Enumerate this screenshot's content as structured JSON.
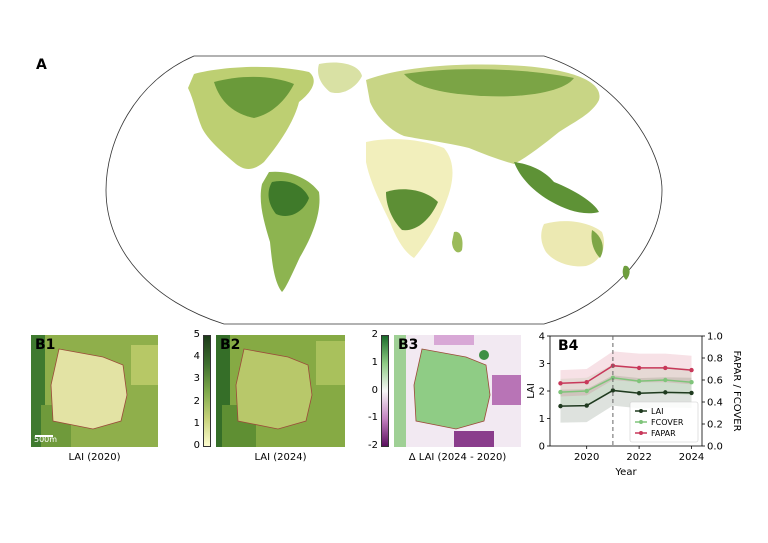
{
  "panels": {
    "a": {
      "label": "A"
    },
    "b1": {
      "label": "B1",
      "caption": "LAI (2020)",
      "scale_label": "500m"
    },
    "b2": {
      "label": "B2",
      "caption": "LAI (2024)"
    },
    "b3": {
      "label": "B3",
      "caption": "Δ LAI (2024 - 2020)"
    },
    "b4": {
      "label": "B4"
    }
  },
  "colorbars": {
    "lai": {
      "ticks": [
        "0",
        "1",
        "2",
        "3",
        "4",
        "5"
      ],
      "colors": [
        "#fefdd0",
        "#c7d27a",
        "#7da84a",
        "#3d6e2e",
        "#1d3b1a"
      ]
    },
    "delta": {
      "ticks": [
        "-2",
        "-1",
        "0",
        "1",
        "2"
      ],
      "colors": [
        "#5b0f5e",
        "#c584c2",
        "#f7f7f7",
        "#8fcc85",
        "#1a6b2a"
      ]
    }
  },
  "chart_data": {
    "type": "line",
    "x": [
      2019,
      2020,
      2021,
      2022,
      2023,
      2024
    ],
    "xlabel": "Year",
    "xticks": [
      "2020",
      "2022",
      "2024"
    ],
    "ylabel": "LAI",
    "ylim": [
      0,
      4
    ],
    "yticks": [
      "0",
      "1",
      "2",
      "3",
      "4"
    ],
    "ylabel_right": "FAPAR / FCOVER",
    "ylim_right": [
      0,
      1.0
    ],
    "yticks_right": [
      "0.0",
      "0.2",
      "0.4",
      "0.6",
      "0.8",
      "1.0"
    ],
    "vline_x": 2021,
    "legend_position": "lower-right",
    "series": [
      {
        "name": "LAI",
        "axis": "left",
        "color": "#1f3a1f",
        "values": [
          1.45,
          1.47,
          2.02,
          1.92,
          1.95,
          1.93
        ],
        "band": [
          0.6,
          0.6,
          0.55,
          0.55,
          0.55,
          0.55
        ]
      },
      {
        "name": "FCOVER",
        "axis": "right",
        "color": "#7fc47a",
        "values": [
          0.49,
          0.5,
          0.62,
          0.59,
          0.6,
          0.58
        ],
        "band": [
          0.12,
          0.12,
          0.12,
          0.12,
          0.12,
          0.12
        ]
      },
      {
        "name": "FAPAR",
        "axis": "right",
        "color": "#c8385a",
        "values": [
          0.57,
          0.58,
          0.73,
          0.71,
          0.71,
          0.69
        ],
        "band": [
          0.12,
          0.12,
          0.13,
          0.13,
          0.13,
          0.13
        ]
      }
    ]
  }
}
